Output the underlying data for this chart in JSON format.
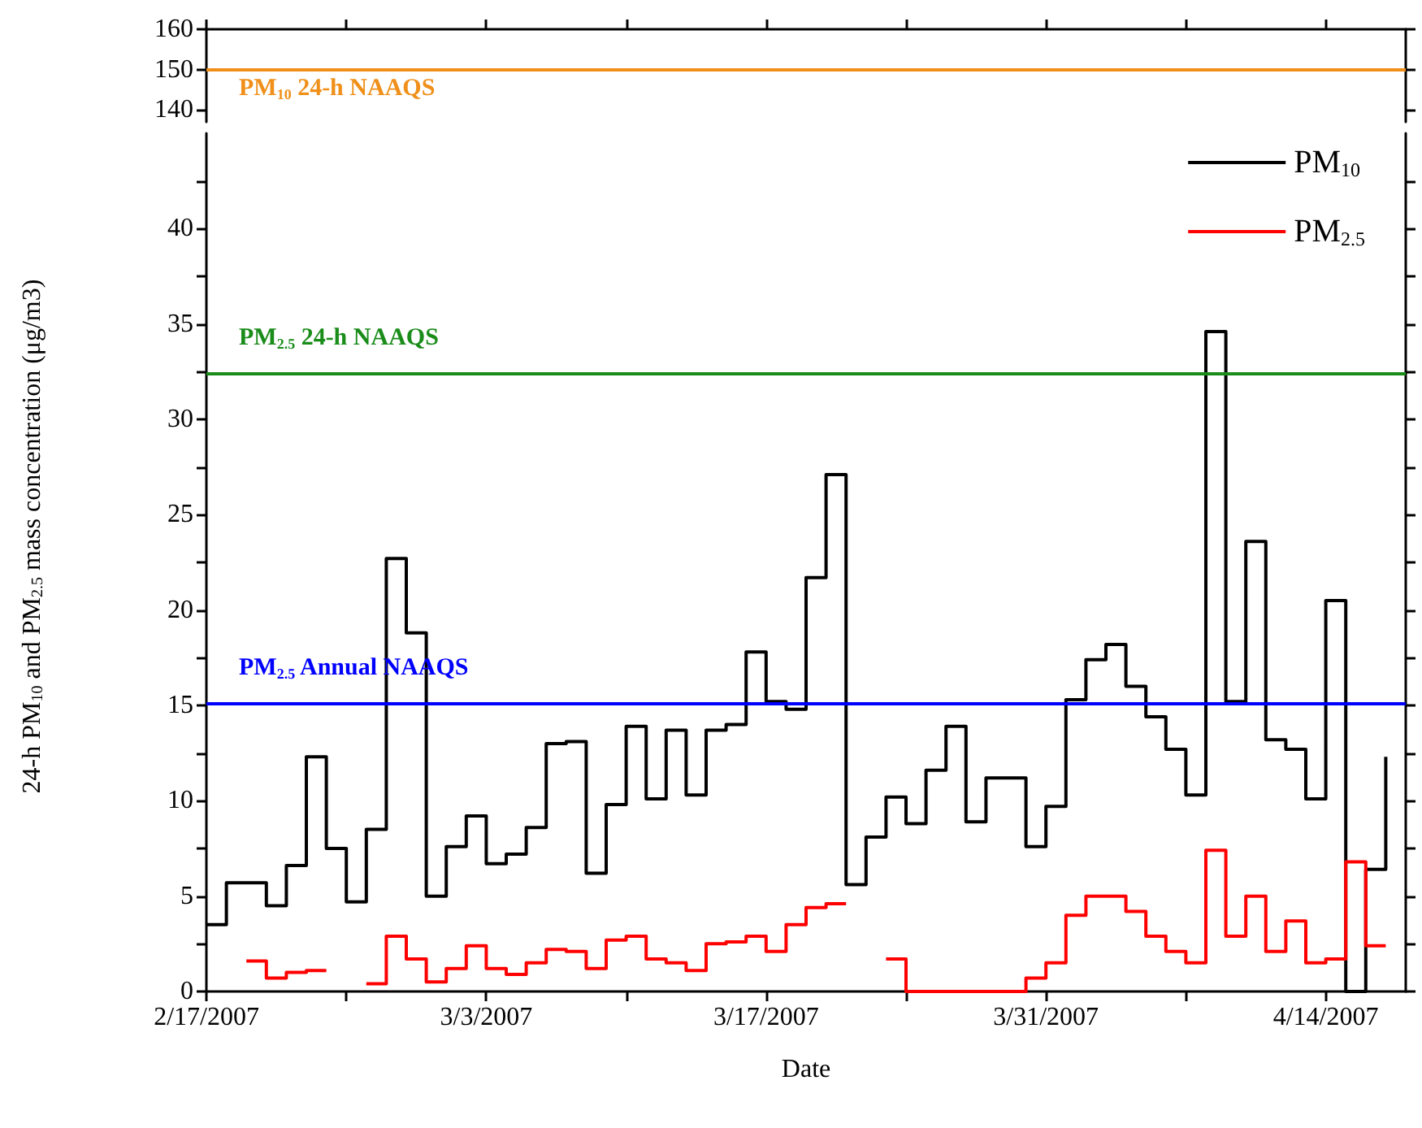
{
  "chart_data": [
    {
      "type": "line",
      "xlim": [
        "2007-02-17",
        "2007-04-18"
      ],
      "xticks": [
        {
          "value": "2007-02-17",
          "label": null
        },
        {
          "value": "2007-02-24",
          "label": null
        },
        {
          "value": "2007-03-03",
          "label": null
        },
        {
          "value": "2007-03-10",
          "label": null
        },
        {
          "value": "2007-03-17",
          "label": null
        },
        {
          "value": "2007-03-24",
          "label": null
        },
        {
          "value": "2007-03-31",
          "label": null
        },
        {
          "value": "2007-04-07",
          "label": null
        },
        {
          "value": "2007-04-14",
          "label": null
        }
      ],
      "ylim": [
        137,
        160
      ],
      "yticks": [
        140,
        150,
        160
      ],
      "tick_labels": "y",
      "ref_lines": [
        {
          "axis": "y",
          "value": 150,
          "label": "PM$_{10}$ 24-h NAAQS",
          "color": "#f0901a"
        }
      ]
    },
    {
      "type": "step",
      "xlabel": "Date",
      "ylabel": "24-h PM$_{10}$ and PM$_{2.5}$ mass concentration (μg/m3)",
      "x": [
        "2007-02-17",
        "2007-02-18",
        "2007-02-19",
        "2007-02-20",
        "2007-02-21",
        "2007-02-22",
        "2007-02-23",
        "2007-02-24",
        "2007-02-25",
        "2007-02-26",
        "2007-02-27",
        "2007-02-28",
        "2007-03-01",
        "2007-03-02",
        "2007-03-03",
        "2007-03-04",
        "2007-03-05",
        "2007-03-06",
        "2007-03-07",
        "2007-03-08",
        "2007-03-09",
        "2007-03-10",
        "2007-03-11",
        "2007-03-12",
        "2007-03-13",
        "2007-03-14",
        "2007-03-15",
        "2007-03-16",
        "2007-03-17",
        "2007-03-18",
        "2007-03-19",
        "2007-03-20",
        "2007-03-21",
        "2007-03-22",
        "2007-03-23",
        "2007-03-24",
        "2007-03-25",
        "2007-03-26",
        "2007-03-27",
        "2007-03-28",
        "2007-03-29",
        "2007-03-30",
        "2007-03-31",
        "2007-04-01",
        "2007-04-02",
        "2007-04-03",
        "2007-04-04",
        "2007-04-05",
        "2007-04-06",
        "2007-04-07",
        "2007-04-08",
        "2007-04-09",
        "2007-04-10",
        "2007-04-11",
        "2007-04-12",
        "2007-04-13",
        "2007-04-14",
        "2007-04-15",
        "2007-04-16",
        "2007-04-17"
      ],
      "series": [
        {
          "name": "PM$_{10}$",
          "color": "#000000",
          "values": [
            3.5,
            5.7,
            5.7,
            4.5,
            6.6,
            12.3,
            7.5,
            4.7,
            8.5,
            22.7,
            18.8,
            5.0,
            7.6,
            9.2,
            6.7,
            7.2,
            8.6,
            13.0,
            13.1,
            6.2,
            9.8,
            13.9,
            10.1,
            13.7,
            10.3,
            13.7,
            14.0,
            17.8,
            15.2,
            14.8,
            21.7,
            27.1,
            5.6,
            8.1,
            10.2,
            8.8,
            11.6,
            13.9,
            8.9,
            11.2,
            11.2,
            7.6,
            9.7,
            15.3,
            17.4,
            18.2,
            16.0,
            14.4,
            12.7,
            10.3,
            34.6,
            15.2,
            23.6,
            13.2,
            12.7,
            10.1,
            20.5,
            0,
            6.4,
            12.3
          ]
        },
        {
          "name": "PM$_{2.5}$",
          "color": "#ff0000",
          "values": [
            null,
            null,
            1.6,
            0.7,
            1.0,
            1.1,
            null,
            null,
            0.4,
            2.9,
            1.7,
            0.5,
            1.2,
            2.4,
            1.2,
            0.9,
            1.5,
            2.2,
            2.1,
            1.2,
            2.7,
            2.9,
            1.7,
            1.5,
            1.1,
            2.5,
            2.6,
            2.9,
            2.1,
            3.5,
            4.4,
            4.6,
            null,
            null,
            1.7,
            0,
            0,
            0,
            0,
            0,
            0,
            0.7,
            1.5,
            4.0,
            5.0,
            5.0,
            4.2,
            2.9,
            2.1,
            1.5,
            7.4,
            2.9,
            5.0,
            2.1,
            3.7,
            1.5,
            1.7,
            6.8,
            2.4,
            2.4
          ]
        }
      ],
      "xlim": [
        "2007-02-17",
        "2007-04-18"
      ],
      "xticks": [
        {
          "value": "2007-02-17",
          "label": "2/17/2007"
        },
        {
          "value": "2007-02-24",
          "label": null
        },
        {
          "value": "2007-03-03",
          "label": "3/3/2007"
        },
        {
          "value": "2007-03-10",
          "label": null
        },
        {
          "value": "2007-03-17",
          "label": "3/17/2007"
        },
        {
          "value": "2007-03-24",
          "label": null
        },
        {
          "value": "2007-03-31",
          "label": "3/31/2007"
        },
        {
          "value": "2007-04-07",
          "label": null
        },
        {
          "value": "2007-04-14",
          "label": "4/14/2007"
        }
      ],
      "ylim": [
        0,
        45
      ],
      "yticks": [
        0,
        {
          "value": 2.5,
          "label": null
        },
        5,
        {
          "value": 7.5,
          "label": null
        },
        10,
        {
          "value": 12.5,
          "label": null
        },
        15,
        {
          "value": 17.5,
          "label": null
        },
        20,
        {
          "value": 22.5,
          "label": null
        },
        25,
        {
          "value": 27.5,
          "label": null
        },
        30,
        {
          "value": 32.5,
          "label": null
        },
        35,
        {
          "value": 37.5,
          "label": null
        },
        40,
        {
          "value": 42.5,
          "label": null
        }
      ],
      "legend": "top right",
      "marker": "none",
      "line_style": "solid",
      "ref_lines": [
        {
          "axis": "y",
          "value": 32.4,
          "label": "PM$_{2.5}$ 24-h NAAQS",
          "color": "#1a8c1a"
        },
        {
          "axis": "y",
          "value": 15.1,
          "label": "PM$_{2.5}$ Annual NAAQS",
          "color": "#0000ff"
        }
      ]
    }
  ]
}
